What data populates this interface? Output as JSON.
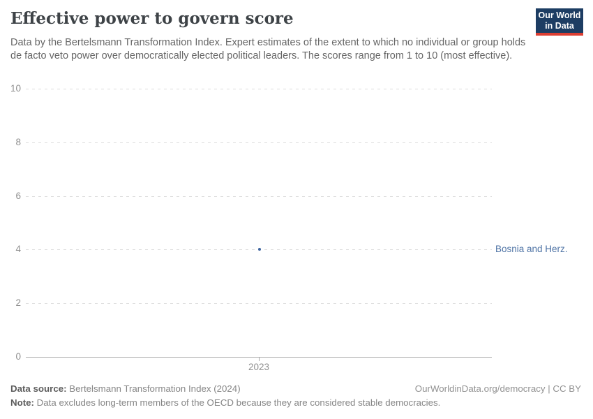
{
  "header": {
    "title": "Effective power to govern score",
    "subtitle": "Data by the Bertelsmann Transformation Index. Expert estimates of the extent to which no individual or group holds de facto veto power over democratically elected political leaders. The scores range from 1 to 10 (most effective).",
    "logo": {
      "line1": "Our World",
      "line2": "in Data",
      "bg_color": "#1d3d63",
      "accent_color": "#dc3e32"
    }
  },
  "chart_data": {
    "type": "scatter",
    "title": "Effective power to govern score",
    "x": [
      2023
    ],
    "series": [
      {
        "name": "Bosnia and Herz.",
        "values": [
          4
        ],
        "color": "#3d649f",
        "label_color": "#4e73a5"
      }
    ],
    "x_tick_labels": [
      "2023"
    ],
    "y_ticks": [
      0,
      2,
      4,
      6,
      8,
      10
    ],
    "ylim": [
      0,
      10
    ],
    "xlabel": "",
    "ylabel": "",
    "grid": "horizontal-dashed",
    "legend_position": "right-entity-label",
    "grid_color": "#dcdcdc",
    "axis_color": "#a8a8a8"
  },
  "footer": {
    "source_label": "Data source:",
    "source_value": " Bertelsmann Transformation Index (2024)",
    "rights": "OurWorldinData.org/democracy | CC BY",
    "note_label": "Note:",
    "note_value": " Data excludes long-term members of the OECD because they are considered stable democracies."
  }
}
